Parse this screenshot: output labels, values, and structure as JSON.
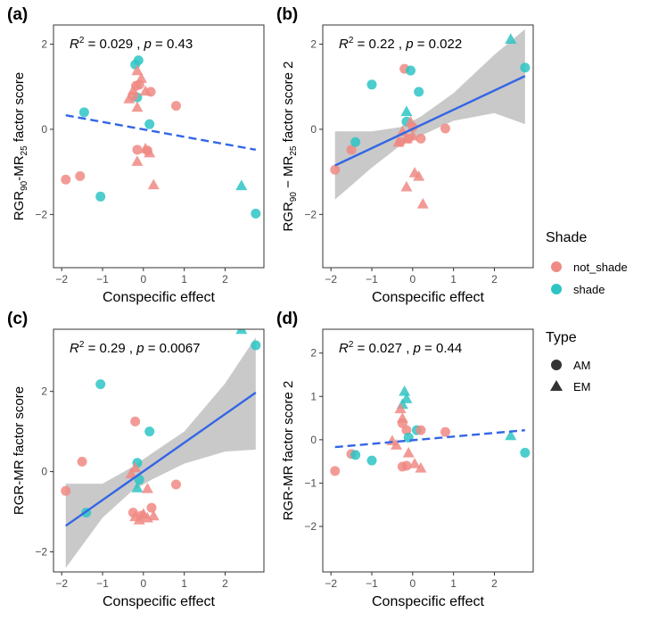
{
  "colors": {
    "not_shade": "#F08A84",
    "shade": "#2EC4C4",
    "fit_line": "#3366E6",
    "band": "#BFBFBF",
    "axis": "#333333",
    "tick_label": "#4D4D4D"
  },
  "legend": {
    "shade_title": "Shade",
    "shade_items": [
      "not_shade",
      "shade"
    ],
    "type_title": "Type",
    "type_items": [
      "AM",
      "EM"
    ]
  },
  "chart_data": [
    {
      "panel": "(a)",
      "type": "scatter",
      "stats": {
        "r2": "0.029",
        "p": "0.43"
      },
      "xlabel": "Conspecific effect",
      "ylabel": {
        "base": "RGR",
        "sub1": "90",
        "mid": "-MR",
        "sub2": "25",
        "tail": " factor score"
      },
      "xlim": [
        -2.2,
        2.95
      ],
      "ylim": [
        -3.25,
        2.45
      ],
      "xticks": [
        -2,
        -1,
        0,
        1,
        2
      ],
      "yticks": [
        -2,
        0,
        2
      ],
      "fit": {
        "style": "dashed",
        "x": [
          -1.9,
          2.75
        ],
        "y": [
          0.33,
          -0.48
        ]
      },
      "points": [
        {
          "x": -1.9,
          "y": -1.18,
          "shade": "not_shade",
          "type": "AM"
        },
        {
          "x": -1.55,
          "y": -1.1,
          "shade": "not_shade",
          "type": "AM"
        },
        {
          "x": -1.45,
          "y": 0.4,
          "shade": "shade",
          "type": "AM"
        },
        {
          "x": -1.05,
          "y": -1.58,
          "shade": "shade",
          "type": "AM"
        },
        {
          "x": -0.2,
          "y": 1.52,
          "shade": "shade",
          "type": "AM"
        },
        {
          "x": -0.12,
          "y": 1.62,
          "shade": "shade",
          "type": "AM"
        },
        {
          "x": -0.18,
          "y": 1.02,
          "shade": "not_shade",
          "type": "AM"
        },
        {
          "x": -0.1,
          "y": 1.05,
          "shade": "not_shade",
          "type": "AM"
        },
        {
          "x": -0.15,
          "y": 0.75,
          "shade": "shade",
          "type": "AM"
        },
        {
          "x": -0.25,
          "y": 0.78,
          "shade": "not_shade",
          "type": "AM"
        },
        {
          "x": 0.18,
          "y": 0.88,
          "shade": "not_shade",
          "type": "AM"
        },
        {
          "x": 0.8,
          "y": 0.55,
          "shade": "not_shade",
          "type": "AM"
        },
        {
          "x": 0.15,
          "y": 0.12,
          "shade": "shade",
          "type": "AM"
        },
        {
          "x": -0.15,
          "y": -0.48,
          "shade": "not_shade",
          "type": "AM"
        },
        {
          "x": 0.1,
          "y": -0.5,
          "shade": "not_shade",
          "type": "AM"
        },
        {
          "x": 2.75,
          "y": -1.98,
          "shade": "shade",
          "type": "AM"
        },
        {
          "x": -0.15,
          "y": 1.38,
          "shade": "not_shade",
          "type": "EM"
        },
        {
          "x": -0.05,
          "y": 1.2,
          "shade": "not_shade",
          "type": "EM"
        },
        {
          "x": -0.25,
          "y": 0.92,
          "shade": "not_shade",
          "type": "EM"
        },
        {
          "x": 0.05,
          "y": 0.9,
          "shade": "not_shade",
          "type": "EM"
        },
        {
          "x": -0.35,
          "y": 0.72,
          "shade": "not_shade",
          "type": "EM"
        },
        {
          "x": -0.15,
          "y": 0.52,
          "shade": "not_shade",
          "type": "EM"
        },
        {
          "x": 0.05,
          "y": -0.45,
          "shade": "not_shade",
          "type": "EM"
        },
        {
          "x": 0.15,
          "y": -0.55,
          "shade": "not_shade",
          "type": "EM"
        },
        {
          "x": -0.15,
          "y": -0.75,
          "shade": "not_shade",
          "type": "EM"
        },
        {
          "x": 0.25,
          "y": -1.3,
          "shade": "not_shade",
          "type": "EM"
        },
        {
          "x": 2.4,
          "y": -1.32,
          "shade": "shade",
          "type": "EM"
        }
      ]
    },
    {
      "panel": "(b)",
      "type": "scatter",
      "stats": {
        "r2": "0.22",
        "p": "0.022"
      },
      "xlabel": "Conspecific effect",
      "ylabel": {
        "base": "RGR",
        "sub1": "90",
        "mid": " − MR",
        "sub2": "25",
        "tail": " factor score 2"
      },
      "xlim": [
        -2.2,
        2.95
      ],
      "ylim": [
        -3.25,
        2.45
      ],
      "xticks": [
        -2,
        -1,
        0,
        1,
        2
      ],
      "yticks": [
        -2,
        0,
        2
      ],
      "fit": {
        "style": "solid",
        "x": [
          -1.9,
          2.75
        ],
        "y": [
          -0.85,
          1.25
        ],
        "band": {
          "x": [
            -1.9,
            -1.0,
            -0.3,
            0.2,
            1.0,
            2.0,
            2.75
          ],
          "lower": [
            -1.65,
            -0.9,
            -0.38,
            -0.15,
            0.2,
            0.38,
            0.12
          ],
          "upper": [
            -0.05,
            -0.05,
            0.05,
            0.3,
            0.85,
            1.75,
            2.35
          ]
        }
      },
      "points": [
        {
          "x": -1.9,
          "y": -0.95,
          "shade": "not_shade",
          "type": "AM"
        },
        {
          "x": -1.5,
          "y": -0.48,
          "shade": "not_shade",
          "type": "AM"
        },
        {
          "x": -1.4,
          "y": -0.3,
          "shade": "shade",
          "type": "AM"
        },
        {
          "x": -1.0,
          "y": 1.05,
          "shade": "shade",
          "type": "AM"
        },
        {
          "x": -0.2,
          "y": 1.42,
          "shade": "not_shade",
          "type": "AM"
        },
        {
          "x": -0.05,
          "y": 1.38,
          "shade": "shade",
          "type": "AM"
        },
        {
          "x": 0.15,
          "y": 0.88,
          "shade": "shade",
          "type": "AM"
        },
        {
          "x": -0.15,
          "y": 0.18,
          "shade": "shade",
          "type": "AM"
        },
        {
          "x": 0.0,
          "y": 0.05,
          "shade": "not_shade",
          "type": "AM"
        },
        {
          "x": -0.3,
          "y": -0.3,
          "shade": "not_shade",
          "type": "AM"
        },
        {
          "x": -0.1,
          "y": -0.22,
          "shade": "not_shade",
          "type": "AM"
        },
        {
          "x": 0.2,
          "y": -0.22,
          "shade": "not_shade",
          "type": "AM"
        },
        {
          "x": 0.8,
          "y": 0.02,
          "shade": "not_shade",
          "type": "AM"
        },
        {
          "x": 2.75,
          "y": 1.45,
          "shade": "shade",
          "type": "AM"
        },
        {
          "x": -0.15,
          "y": 0.42,
          "shade": "shade",
          "type": "EM"
        },
        {
          "x": -0.05,
          "y": 0.18,
          "shade": "not_shade",
          "type": "EM"
        },
        {
          "x": -0.25,
          "y": -0.05,
          "shade": "not_shade",
          "type": "EM"
        },
        {
          "x": -0.35,
          "y": -0.3,
          "shade": "not_shade",
          "type": "EM"
        },
        {
          "x": -0.15,
          "y": -0.22,
          "shade": "not_shade",
          "type": "EM"
        },
        {
          "x": 0.0,
          "y": -0.15,
          "shade": "not_shade",
          "type": "EM"
        },
        {
          "x": 0.05,
          "y": -1.02,
          "shade": "not_shade",
          "type": "EM"
        },
        {
          "x": 0.15,
          "y": -1.1,
          "shade": "not_shade",
          "type": "EM"
        },
        {
          "x": -0.15,
          "y": -1.35,
          "shade": "not_shade",
          "type": "EM"
        },
        {
          "x": 0.25,
          "y": -1.75,
          "shade": "not_shade",
          "type": "EM"
        },
        {
          "x": 2.4,
          "y": 2.12,
          "shade": "shade",
          "type": "EM"
        }
      ]
    },
    {
      "panel": "(c)",
      "type": "scatter",
      "stats": {
        "r2": "0.29",
        "p": "0.0067"
      },
      "xlabel": "Conspecific effect",
      "ylabel": {
        "base": "RGR-MR",
        "sub1": "",
        "mid": "",
        "sub2": "",
        "tail": " factor score"
      },
      "xlim": [
        -2.2,
        2.95
      ],
      "ylim": [
        -2.5,
        3.55
      ],
      "xticks": [
        -2,
        -1,
        0,
        1,
        2
      ],
      "yticks": [
        -2,
        0,
        2
      ],
      "fit": {
        "style": "solid",
        "x": [
          -1.9,
          2.75
        ],
        "y": [
          -1.35,
          1.97
        ],
        "band": {
          "x": [
            -1.9,
            -1.0,
            -0.3,
            0.2,
            1.0,
            2.0,
            2.75
          ],
          "lower": [
            -2.4,
            -1.15,
            -0.5,
            -0.2,
            0.2,
            0.5,
            0.55
          ],
          "upper": [
            -0.3,
            -0.3,
            0.1,
            0.45,
            1.0,
            2.2,
            3.35
          ]
        }
      },
      "points": [
        {
          "x": -1.9,
          "y": -0.48,
          "shade": "not_shade",
          "type": "AM"
        },
        {
          "x": -1.5,
          "y": 0.25,
          "shade": "not_shade",
          "type": "AM"
        },
        {
          "x": -1.4,
          "y": -1.02,
          "shade": "shade",
          "type": "AM"
        },
        {
          "x": -1.05,
          "y": 2.18,
          "shade": "shade",
          "type": "AM"
        },
        {
          "x": -0.2,
          "y": 1.25,
          "shade": "not_shade",
          "type": "AM"
        },
        {
          "x": 0.15,
          "y": 1.0,
          "shade": "shade",
          "type": "AM"
        },
        {
          "x": -0.15,
          "y": 0.22,
          "shade": "shade",
          "type": "AM"
        },
        {
          "x": -0.1,
          "y": -0.2,
          "shade": "shade",
          "type": "AM"
        },
        {
          "x": 0.8,
          "y": -0.32,
          "shade": "not_shade",
          "type": "AM"
        },
        {
          "x": -0.25,
          "y": -1.02,
          "shade": "not_shade",
          "type": "AM"
        },
        {
          "x": -0.05,
          "y": -1.1,
          "shade": "not_shade",
          "type": "AM"
        },
        {
          "x": 0.2,
          "y": -0.9,
          "shade": "not_shade",
          "type": "AM"
        },
        {
          "x": 2.75,
          "y": 3.15,
          "shade": "shade",
          "type": "AM"
        },
        {
          "x": -0.3,
          "y": -0.05,
          "shade": "not_shade",
          "type": "EM"
        },
        {
          "x": -0.2,
          "y": 0.1,
          "shade": "not_shade",
          "type": "EM"
        },
        {
          "x": -0.15,
          "y": -0.4,
          "shade": "shade",
          "type": "EM"
        },
        {
          "x": 0.1,
          "y": -0.42,
          "shade": "not_shade",
          "type": "EM"
        },
        {
          "x": -0.2,
          "y": -1.12,
          "shade": "not_shade",
          "type": "EM"
        },
        {
          "x": 0.0,
          "y": -1.05,
          "shade": "not_shade",
          "type": "EM"
        },
        {
          "x": 0.1,
          "y": -1.15,
          "shade": "not_shade",
          "type": "EM"
        },
        {
          "x": 0.25,
          "y": -1.1,
          "shade": "not_shade",
          "type": "EM"
        },
        {
          "x": -0.1,
          "y": -1.2,
          "shade": "not_shade",
          "type": "EM"
        },
        {
          "x": 2.4,
          "y": 3.55,
          "shade": "shade",
          "type": "EM"
        }
      ]
    },
    {
      "panel": "(d)",
      "type": "scatter",
      "stats": {
        "r2": "0.027",
        "p": "0.44"
      },
      "xlabel": "Conspecific effect",
      "ylabel": {
        "base": "RGR-MR",
        "sub1": "",
        "mid": "",
        "sub2": "",
        "tail": " factor score 2"
      },
      "xlim": [
        -2.2,
        2.95
      ],
      "ylim": [
        -3.05,
        2.55
      ],
      "xticks": [
        -2,
        -1,
        0,
        1,
        2
      ],
      "yticks": [
        -2,
        -1,
        0,
        1,
        2
      ],
      "fit": {
        "style": "dashed",
        "x": [
          -1.9,
          2.75
        ],
        "y": [
          -0.17,
          0.22
        ]
      },
      "points": [
        {
          "x": -1.9,
          "y": -0.72,
          "shade": "not_shade",
          "type": "AM"
        },
        {
          "x": -1.5,
          "y": -0.33,
          "shade": "not_shade",
          "type": "AM"
        },
        {
          "x": -1.4,
          "y": -0.35,
          "shade": "shade",
          "type": "AM"
        },
        {
          "x": -1.0,
          "y": -0.48,
          "shade": "shade",
          "type": "AM"
        },
        {
          "x": -0.25,
          "y": 0.38,
          "shade": "not_shade",
          "type": "AM"
        },
        {
          "x": -0.15,
          "y": 0.22,
          "shade": "not_shade",
          "type": "AM"
        },
        {
          "x": 0.1,
          "y": 0.22,
          "shade": "shade",
          "type": "AM"
        },
        {
          "x": 0.2,
          "y": 0.22,
          "shade": "not_shade",
          "type": "AM"
        },
        {
          "x": -0.1,
          "y": 0.05,
          "shade": "shade",
          "type": "AM"
        },
        {
          "x": 0.8,
          "y": 0.18,
          "shade": "not_shade",
          "type": "AM"
        },
        {
          "x": -0.25,
          "y": -0.62,
          "shade": "not_shade",
          "type": "AM"
        },
        {
          "x": -0.15,
          "y": -0.6,
          "shade": "not_shade",
          "type": "AM"
        },
        {
          "x": 2.75,
          "y": -0.3,
          "shade": "shade",
          "type": "AM"
        },
        {
          "x": -0.2,
          "y": 1.12,
          "shade": "shade",
          "type": "EM"
        },
        {
          "x": -0.15,
          "y": 0.95,
          "shade": "shade",
          "type": "EM"
        },
        {
          "x": -0.25,
          "y": 0.82,
          "shade": "shade",
          "type": "EM"
        },
        {
          "x": -0.3,
          "y": 0.72,
          "shade": "not_shade",
          "type": "EM"
        },
        {
          "x": -0.25,
          "y": 0.5,
          "shade": "not_shade",
          "type": "EM"
        },
        {
          "x": -0.4,
          "y": -0.12,
          "shade": "not_shade",
          "type": "EM"
        },
        {
          "x": -0.5,
          "y": -0.02,
          "shade": "not_shade",
          "type": "EM"
        },
        {
          "x": -0.1,
          "y": -0.3,
          "shade": "not_shade",
          "type": "EM"
        },
        {
          "x": 0.05,
          "y": -0.55,
          "shade": "not_shade",
          "type": "EM"
        },
        {
          "x": 0.2,
          "y": -0.65,
          "shade": "not_shade",
          "type": "EM"
        },
        {
          "x": 2.4,
          "y": 0.1,
          "shade": "shade",
          "type": "EM"
        }
      ]
    }
  ]
}
